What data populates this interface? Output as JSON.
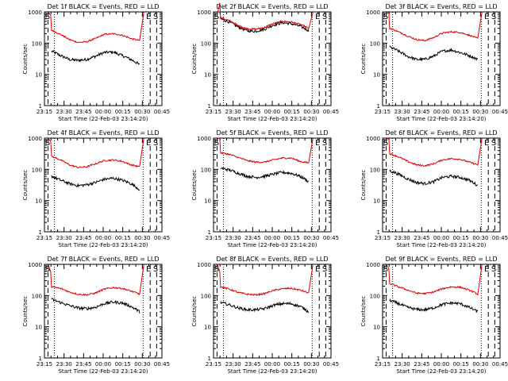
{
  "figure": {
    "background": "#ffffff",
    "events_color": "#000000",
    "lld_color": "#e00000"
  },
  "chart_data": [
    {
      "type": "line",
      "title": "Det 1f BLACK = Events, RED = LLD",
      "xlabel": "Start Time (22-Feb-03 23:14:20)",
      "ylabel": "Counts/sec",
      "xticks": [
        "23:15",
        "23:30",
        "23:45",
        "00:00",
        "00:15",
        "00:30",
        "00:45"
      ],
      "yticks": [
        "1",
        "10",
        "100",
        "1000"
      ],
      "ylim": [
        1,
        1000
      ],
      "y_scale": "log",
      "series": [
        {
          "name": "Events",
          "values": [
            55,
            40,
            30,
            28,
            30,
            38,
            50,
            52,
            40,
            30,
            20
          ]
        },
        {
          "name": "LLD",
          "values": [
            260,
            190,
            130,
            105,
            110,
            140,
            190,
            200,
            180,
            140,
            120
          ]
        }
      ],
      "markers": [
        "S",
        "E",
        "S"
      ]
    },
    {
      "type": "line",
      "title": "Det 2f BLACK = Events, RED = LLD",
      "xlabel": "Start Time (22-Feb-03 23:14:20)",
      "ylabel": "Counts/sec",
      "xticks": [
        "23:15",
        "23:30",
        "23:45",
        "00:00",
        "00:15",
        "00:30",
        "00:45"
      ],
      "yticks": [
        "1",
        "10",
        "100",
        "1000"
      ],
      "ylim": [
        1,
        1000
      ],
      "y_scale": "log",
      "series": [
        {
          "name": "Events",
          "values": [
            600,
            470,
            330,
            250,
            240,
            280,
            380,
            450,
            420,
            350,
            250
          ]
        },
        {
          "name": "LLD",
          "values": [
            650,
            520,
            360,
            290,
            280,
            320,
            420,
            500,
            480,
            400,
            300
          ]
        }
      ],
      "markers": [
        "S",
        "E",
        "S"
      ]
    },
    {
      "type": "line",
      "title": "Det 3f BLACK = Events, RED = LLD",
      "xlabel": "Start Time (22-Feb-03 23:14:20)",
      "ylabel": "Counts/sec",
      "xticks": [
        "23:15",
        "23:30",
        "23:45",
        "00:00",
        "00:15",
        "00:30",
        "00:45"
      ],
      "yticks": [
        "1",
        "10",
        "100",
        "1000"
      ],
      "ylim": [
        1,
        1000
      ],
      "y_scale": "log",
      "series": [
        {
          "name": "Events",
          "values": [
            75,
            55,
            38,
            30,
            30,
            38,
            55,
            60,
            50,
            40,
            30
          ]
        },
        {
          "name": "LLD",
          "values": [
            300,
            230,
            170,
            130,
            120,
            150,
            210,
            230,
            220,
            180,
            140
          ]
        }
      ],
      "markers": [
        "S",
        "E",
        "S"
      ]
    },
    {
      "type": "line",
      "title": "Det 4f BLACK = Events, RED = LLD",
      "xlabel": "Start Time (22-Feb-03 23:14:20)",
      "ylabel": "Counts/sec",
      "xticks": [
        "23:15",
        "23:30",
        "23:45",
        "00:00",
        "00:15",
        "00:30",
        "00:45"
      ],
      "yticks": [
        "1",
        "10",
        "100",
        "1000"
      ],
      "ylim": [
        1,
        1000
      ],
      "y_scale": "log",
      "series": [
        {
          "name": "Events",
          "values": [
            60,
            45,
            35,
            30,
            32,
            38,
            48,
            52,
            45,
            35,
            22
          ]
        },
        {
          "name": "LLD",
          "values": [
            260,
            200,
            140,
            115,
            120,
            150,
            190,
            200,
            180,
            140,
            120
          ]
        }
      ],
      "markers": [
        "S",
        "E",
        "S"
      ]
    },
    {
      "type": "line",
      "title": "Det 5f BLACK = Events, RED = LLD",
      "xlabel": "Start Time (22-Feb-03 23:14:20)",
      "ylabel": "Counts/sec",
      "xticks": [
        "23:15",
        "23:30",
        "23:45",
        "00:00",
        "00:15",
        "00:30",
        "00:45"
      ],
      "yticks": [
        "1",
        "10",
        "100",
        "1000"
      ],
      "ylim": [
        1,
        1000
      ],
      "y_scale": "log",
      "series": [
        {
          "name": "Events",
          "values": [
            110,
            95,
            75,
            60,
            55,
            60,
            70,
            80,
            75,
            60,
            40
          ]
        },
        {
          "name": "LLD",
          "values": [
            340,
            300,
            240,
            190,
            170,
            170,
            200,
            230,
            230,
            180,
            160
          ]
        }
      ],
      "markers": [
        "S",
        "E",
        "S"
      ]
    },
    {
      "type": "line",
      "title": "Det 6f BLACK = Events, RED = LLD",
      "xlabel": "Start Time (22-Feb-03 23:14:20)",
      "ylabel": "Counts/sec",
      "xticks": [
        "23:15",
        "23:30",
        "23:45",
        "00:00",
        "00:15",
        "00:30",
        "00:45"
      ],
      "yticks": [
        "1",
        "10",
        "100",
        "1000"
      ],
      "ylim": [
        1,
        1000
      ],
      "y_scale": "log",
      "series": [
        {
          "name": "Events",
          "values": [
            90,
            70,
            50,
            38,
            35,
            40,
            55,
            60,
            55,
            45,
            30
          ]
        },
        {
          "name": "LLD",
          "values": [
            320,
            250,
            180,
            140,
            130,
            150,
            200,
            220,
            210,
            170,
            140
          ]
        }
      ],
      "markers": [
        "S",
        "E",
        "S"
      ]
    },
    {
      "type": "line",
      "title": "Det 7f BLACK = Events, RED = LLD",
      "xlabel": "Start Time (22-Feb-03 23:14:20)",
      "ylabel": "Counts/sec",
      "xticks": [
        "23:15",
        "23:30",
        "23:45",
        "00:00",
        "00:15",
        "00:30",
        "00:45"
      ],
      "yticks": [
        "1",
        "10",
        "100",
        "1000"
      ],
      "ylim": [
        1,
        1000
      ],
      "y_scale": "log",
      "series": [
        {
          "name": "Events",
          "values": [
            75,
            60,
            48,
            40,
            38,
            42,
            55,
            62,
            58,
            45,
            30
          ]
        },
        {
          "name": "LLD",
          "values": [
            190,
            170,
            130,
            110,
            105,
            120,
            160,
            180,
            170,
            140,
            110
          ]
        }
      ],
      "markers": [
        "S",
        "E",
        "S"
      ]
    },
    {
      "type": "line",
      "title": "Det 8f BLACK = Events, RED = LLD",
      "xlabel": "Start Time (22-Feb-03 23:14:20)",
      "ylabel": "Counts/sec",
      "xticks": [
        "23:15",
        "23:30",
        "23:45",
        "00:00",
        "00:15",
        "00:30",
        "00:45"
      ],
      "yticks": [
        "1",
        "10",
        "100",
        "1000"
      ],
      "ylim": [
        1,
        1000
      ],
      "y_scale": "log",
      "series": [
        {
          "name": "Events",
          "values": [
            60,
            50,
            40,
            35,
            35,
            38,
            48,
            55,
            55,
            45,
            30
          ]
        },
        {
          "name": "LLD",
          "values": [
            190,
            160,
            125,
            110,
            105,
            115,
            145,
            165,
            170,
            150,
            120
          ]
        }
      ],
      "markers": [
        "S",
        "E",
        "S"
      ]
    },
    {
      "type": "line",
      "title": "Det 9f BLACK = Events, RED = LLD",
      "xlabel": "Start Time (22-Feb-03 23:14:20)",
      "ylabel": "Counts/sec",
      "xticks": [
        "23:15",
        "23:30",
        "23:45",
        "00:00",
        "00:15",
        "00:30",
        "00:45"
      ],
      "yticks": [
        "1",
        "10",
        "100",
        "1000"
      ],
      "ylim": [
        1,
        1000
      ],
      "y_scale": "log",
      "series": [
        {
          "name": "Events",
          "values": [
            70,
            55,
            42,
            36,
            35,
            40,
            52,
            58,
            55,
            42,
            30
          ]
        },
        {
          "name": "LLD",
          "values": [
            240,
            190,
            150,
            120,
            115,
            130,
            165,
            190,
            185,
            150,
            110
          ]
        }
      ],
      "markers": [
        "S",
        "E",
        "S"
      ]
    }
  ]
}
